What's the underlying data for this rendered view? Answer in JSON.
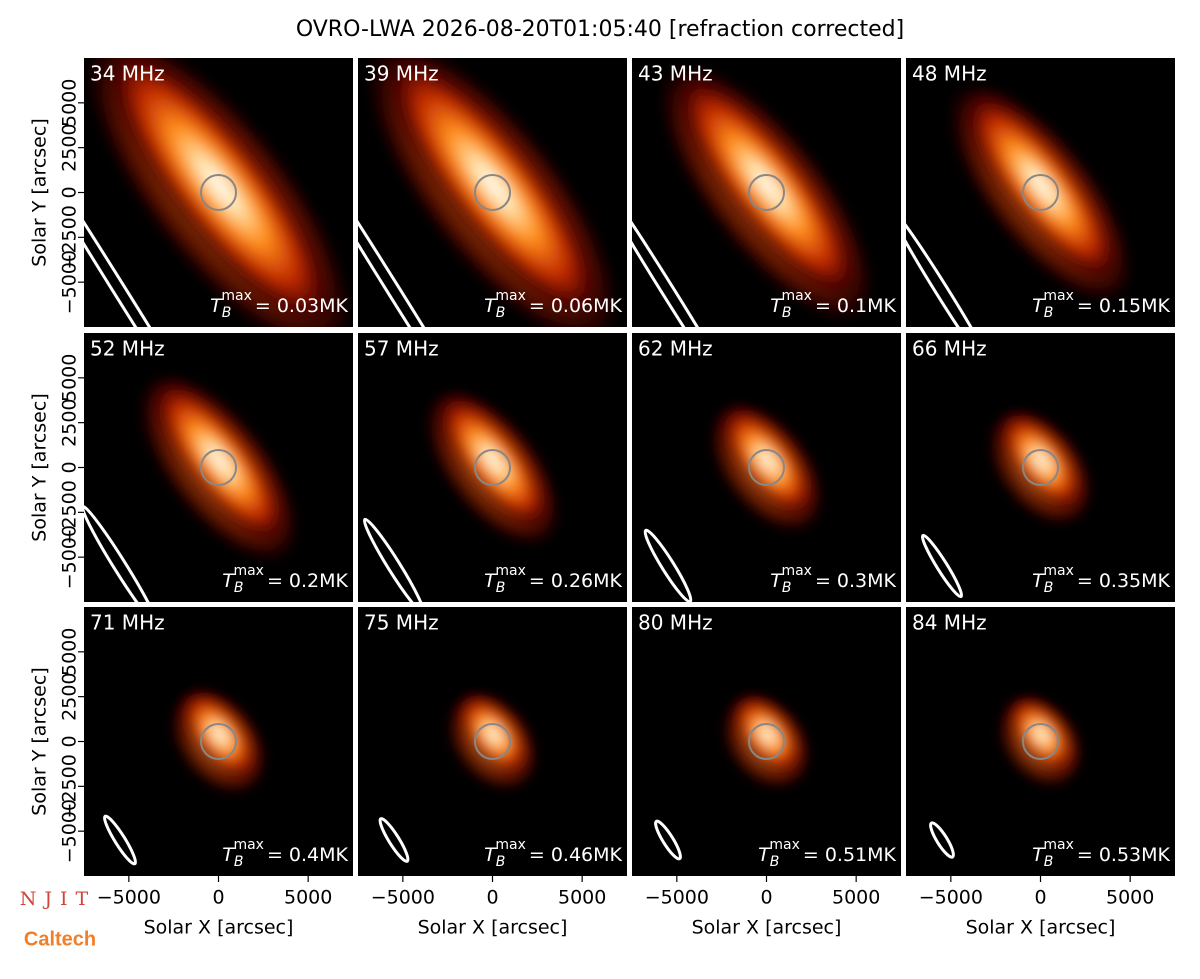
{
  "chart_data": {
    "type": "image-grid",
    "title": "OVRO-LWA 2026-08-20T01:05:40 [refraction corrected]",
    "xlabel": "Solar X [arcsec]",
    "ylabel": "Solar Y [arcsec]",
    "xlim": [
      -7500,
      7500
    ],
    "ylim": [
      -7500,
      7500
    ],
    "xticks": [
      {
        "value": -5000,
        "label": "−5000"
      },
      0,
      5000
    ],
    "yticks": [
      {
        "value": -5000,
        "label": "−5000"
      },
      {
        "value": -2500,
        "label": "−2500"
      },
      0,
      2500,
      5000
    ],
    "tmax_symbol": {
      "base": "T",
      "sub": "B",
      "sup": "max"
    },
    "panels": [
      {
        "label": "34 MHz",
        "tmax": "= 0.03MK"
      },
      {
        "label": "39 MHz",
        "tmax": "= 0.06MK"
      },
      {
        "label": "43 MHz",
        "tmax": "= 0.1MK"
      },
      {
        "label": "48 MHz",
        "tmax": "= 0.15MK"
      },
      {
        "label": "52 MHz",
        "tmax": "= 0.2MK"
      },
      {
        "label": "57 MHz",
        "tmax": "= 0.26MK"
      },
      {
        "label": "62 MHz",
        "tmax": "= 0.3MK"
      },
      {
        "label": "66 MHz",
        "tmax": "= 0.35MK"
      },
      {
        "label": "71 MHz",
        "tmax": "= 0.4MK"
      },
      {
        "label": "75 MHz",
        "tmax": "= 0.46MK"
      },
      {
        "label": "80 MHz",
        "tmax": "= 0.51MK"
      },
      {
        "label": "84 MHz",
        "tmax": "= 0.53MK"
      }
    ]
  },
  "logos": {
    "njit": "NJIT",
    "caltech": "Caltech"
  }
}
